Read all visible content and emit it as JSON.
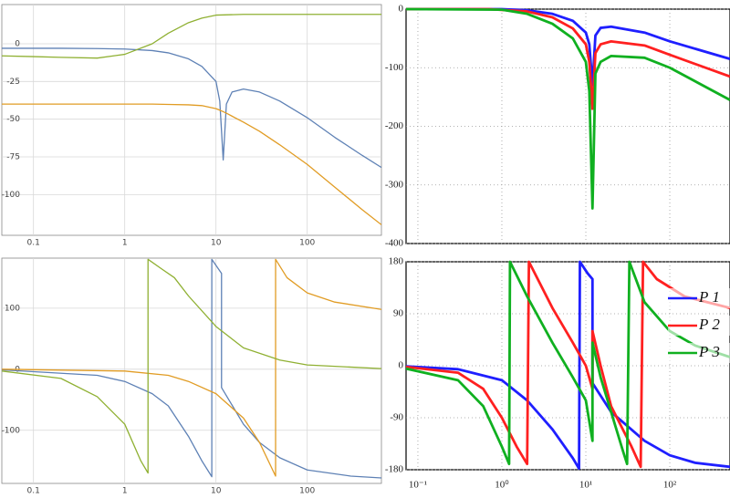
{
  "chart_data": [
    {
      "type": "line",
      "xscale": "log",
      "grid": true,
      "xlim": [
        0.045,
        650
      ],
      "ylim": [
        -127,
        26
      ],
      "xticks": [
        0.1,
        1,
        10,
        100
      ],
      "xtick_labels": true,
      "yticks": [
        0,
        -25,
        -50,
        -75,
        -100
      ],
      "series": [
        {
          "name": "blue",
          "color": "#5e81b5",
          "x": [
            0.045,
            0.1,
            0.2,
            0.5,
            1,
            2,
            3,
            5,
            7,
            10,
            11,
            12,
            13,
            15,
            20,
            30,
            50,
            100,
            200,
            400,
            650
          ],
          "values": [
            -3,
            -3,
            -3,
            -3.2,
            -3.5,
            -4.5,
            -6,
            -10,
            -15,
            -25,
            -38,
            -77,
            -40,
            -32,
            -30,
            -32,
            -38,
            -49,
            -62,
            -74,
            -82
          ]
        },
        {
          "name": "orange",
          "color": "#e19c24",
          "x": [
            0.045,
            0.1,
            0.2,
            0.5,
            1,
            2,
            3,
            5,
            7,
            10,
            11,
            12,
            13,
            15,
            20,
            30,
            50,
            100,
            200,
            400,
            650
          ],
          "values": [
            -40,
            -40,
            -40,
            -40,
            -40,
            -40,
            -40.2,
            -40.5,
            -41,
            -43,
            -44,
            -45,
            -46,
            -48,
            -52,
            -58,
            -67,
            -80,
            -95,
            -110,
            -120
          ]
        },
        {
          "name": "green",
          "color": "#8fb032",
          "x": [
            0.045,
            0.1,
            0.2,
            0.5,
            1,
            2,
            3,
            5,
            7,
            10,
            20,
            50,
            100,
            650
          ],
          "values": [
            -8,
            -8.5,
            -9,
            -9.5,
            -7,
            0,
            7,
            14,
            17,
            19,
            19.5,
            19.5,
            19.5,
            19.5
          ]
        }
      ]
    },
    {
      "type": "line",
      "xscale": "log",
      "grid": true,
      "xlim": [
        0.0723,
        521
      ],
      "ylim": [
        -400,
        0
      ],
      "xticks": [
        0.1,
        1,
        10,
        100
      ],
      "xtick_labels": false,
      "yticks": [
        0,
        -100,
        -200,
        -300,
        -400
      ],
      "series": [
        {
          "name": "blue",
          "color": "#1f1fff",
          "x": [
            0.0723,
            1,
            2,
            4,
            7,
            10,
            11,
            12,
            13,
            15,
            20,
            50,
            100,
            521
          ],
          "values": [
            0,
            0,
            -2,
            -8,
            -20,
            -40,
            -60,
            -130,
            -45,
            -32,
            -30,
            -40,
            -55,
            -85
          ]
        },
        {
          "name": "red",
          "color": "#ff2020",
          "x": [
            0.0723,
            0.7,
            2,
            4,
            7,
            10,
            11,
            12,
            13,
            15,
            20,
            50,
            100,
            521
          ],
          "values": [
            0,
            0,
            -4,
            -14,
            -33,
            -60,
            -90,
            -170,
            -75,
            -60,
            -55,
            -62,
            -78,
            -115
          ]
        },
        {
          "name": "green",
          "color": "#10b020",
          "x": [
            0.0723,
            1,
            2,
            4,
            7,
            10,
            11,
            12,
            13,
            15,
            20,
            50,
            100,
            521
          ],
          "values": [
            0,
            -1,
            -8,
            -25,
            -50,
            -90,
            -140,
            -340,
            -110,
            -90,
            -80,
            -83,
            -100,
            -155
          ]
        }
      ]
    },
    {
      "type": "line",
      "xscale": "log",
      "grid": true,
      "xlim": [
        0.045,
        650
      ],
      "ylim": [
        -187,
        182
      ],
      "xticks": [
        0.1,
        1,
        10,
        100
      ],
      "xtick_labels": true,
      "yticks": [
        100,
        0,
        -100
      ],
      "series": [
        {
          "name": "blue",
          "color": "#5e81b5",
          "x": [
            0.045,
            0.5,
            1,
            2,
            3,
            5,
            7,
            9,
            9,
            11.5,
            11.5,
            20,
            30,
            50,
            100,
            300,
            650
          ],
          "values": [
            -1,
            -10,
            -20,
            -40,
            -60,
            -110,
            -150,
            -176,
            180,
            157,
            -30,
            -90,
            -120,
            -145,
            -165,
            -175,
            -178
          ]
        },
        {
          "name": "orange",
          "color": "#e19c24",
          "x": [
            0.045,
            1,
            3,
            5,
            10,
            20,
            30,
            45,
            45,
            60,
            100,
            200,
            650
          ],
          "values": [
            0,
            -3,
            -10,
            -20,
            -40,
            -80,
            -120,
            -175,
            180,
            150,
            125,
            110,
            98
          ]
        },
        {
          "name": "green",
          "color": "#8fb032",
          "x": [
            0.045,
            0.2,
            0.5,
            1,
            1.5,
            1.8,
            1.8,
            2.5,
            3.5,
            5,
            10,
            20,
            50,
            100,
            650
          ],
          "values": [
            -3,
            -15,
            -45,
            -90,
            -150,
            -170,
            180,
            165,
            150,
            120,
            70,
            35,
            15,
            7,
            1
          ]
        }
      ]
    },
    {
      "type": "line",
      "xscale": "log",
      "grid": true,
      "xlim": [
        0.0723,
        521
      ],
      "ylim": [
        -180,
        180
      ],
      "xticks": [
        {
          "value": 0.1,
          "label": "10⁻¹"
        },
        {
          "value": 1,
          "label": "10⁰"
        },
        {
          "value": 10,
          "label": "10¹"
        },
        {
          "value": 100,
          "label": "10²"
        }
      ],
      "xtick_labels": true,
      "yticks": [
        180,
        90,
        0,
        -90,
        -180
      ],
      "legend": "right",
      "series": [
        {
          "name": "P 1",
          "color": "#1f1fff",
          "x": [
            0.0723,
            0.3,
            1,
            2,
            4,
            7,
            8.3,
            8.5,
            10.5,
            12,
            12,
            20,
            50,
            100,
            200,
            521
          ],
          "values": [
            -1,
            -6,
            -25,
            -60,
            -110,
            -160,
            -178,
            180,
            160,
            150,
            -30,
            -80,
            -130,
            -155,
            -168,
            -175
          ]
        },
        {
          "name": "P 2",
          "color": "#ff2020",
          "x": [
            0.0723,
            0.3,
            0.6,
            1,
            1.5,
            2,
            2.1,
            4,
            7,
            10,
            12,
            12,
            15,
            20,
            35,
            45,
            48,
            70,
            150,
            521
          ],
          "values": [
            -2,
            -12,
            -40,
            -90,
            -140,
            -170,
            180,
            100,
            40,
            0,
            -40,
            60,
            0,
            -70,
            -140,
            -175,
            180,
            150,
            120,
            100
          ]
        },
        {
          "name": "P 3",
          "color": "#10b020",
          "x": [
            0.0723,
            0.3,
            0.6,
            1,
            1.22,
            1.25,
            2,
            4,
            7,
            10,
            12,
            12,
            15,
            20,
            28,
            31,
            33,
            50,
            100,
            200,
            521
          ],
          "values": [
            -5,
            -25,
            -70,
            -140,
            -170,
            180,
            120,
            40,
            -20,
            -60,
            -130,
            40,
            -20,
            -80,
            -150,
            -170,
            180,
            110,
            60,
            35,
            15
          ]
        }
      ]
    }
  ]
}
